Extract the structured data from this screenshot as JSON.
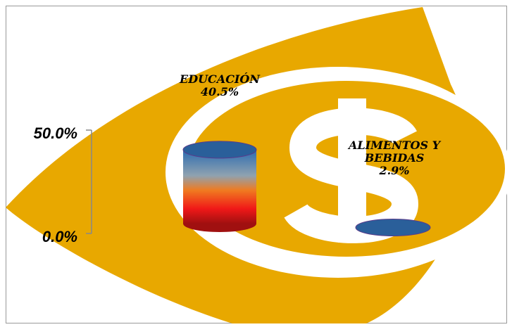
{
  "chart_data": {
    "type": "bar3d",
    "categories": [
      "EDUCACIÓN",
      "ALIMENTOS Y BEBIDAS"
    ],
    "values": [
      40.5,
      2.9
    ],
    "value_labels": [
      "40.5%",
      "2.9%"
    ],
    "ylim": [
      0,
      50
    ],
    "yticks": [
      {
        "value": 0,
        "label": "0.0%"
      },
      {
        "value": 50,
        "label": "50.0%"
      }
    ]
  }
}
